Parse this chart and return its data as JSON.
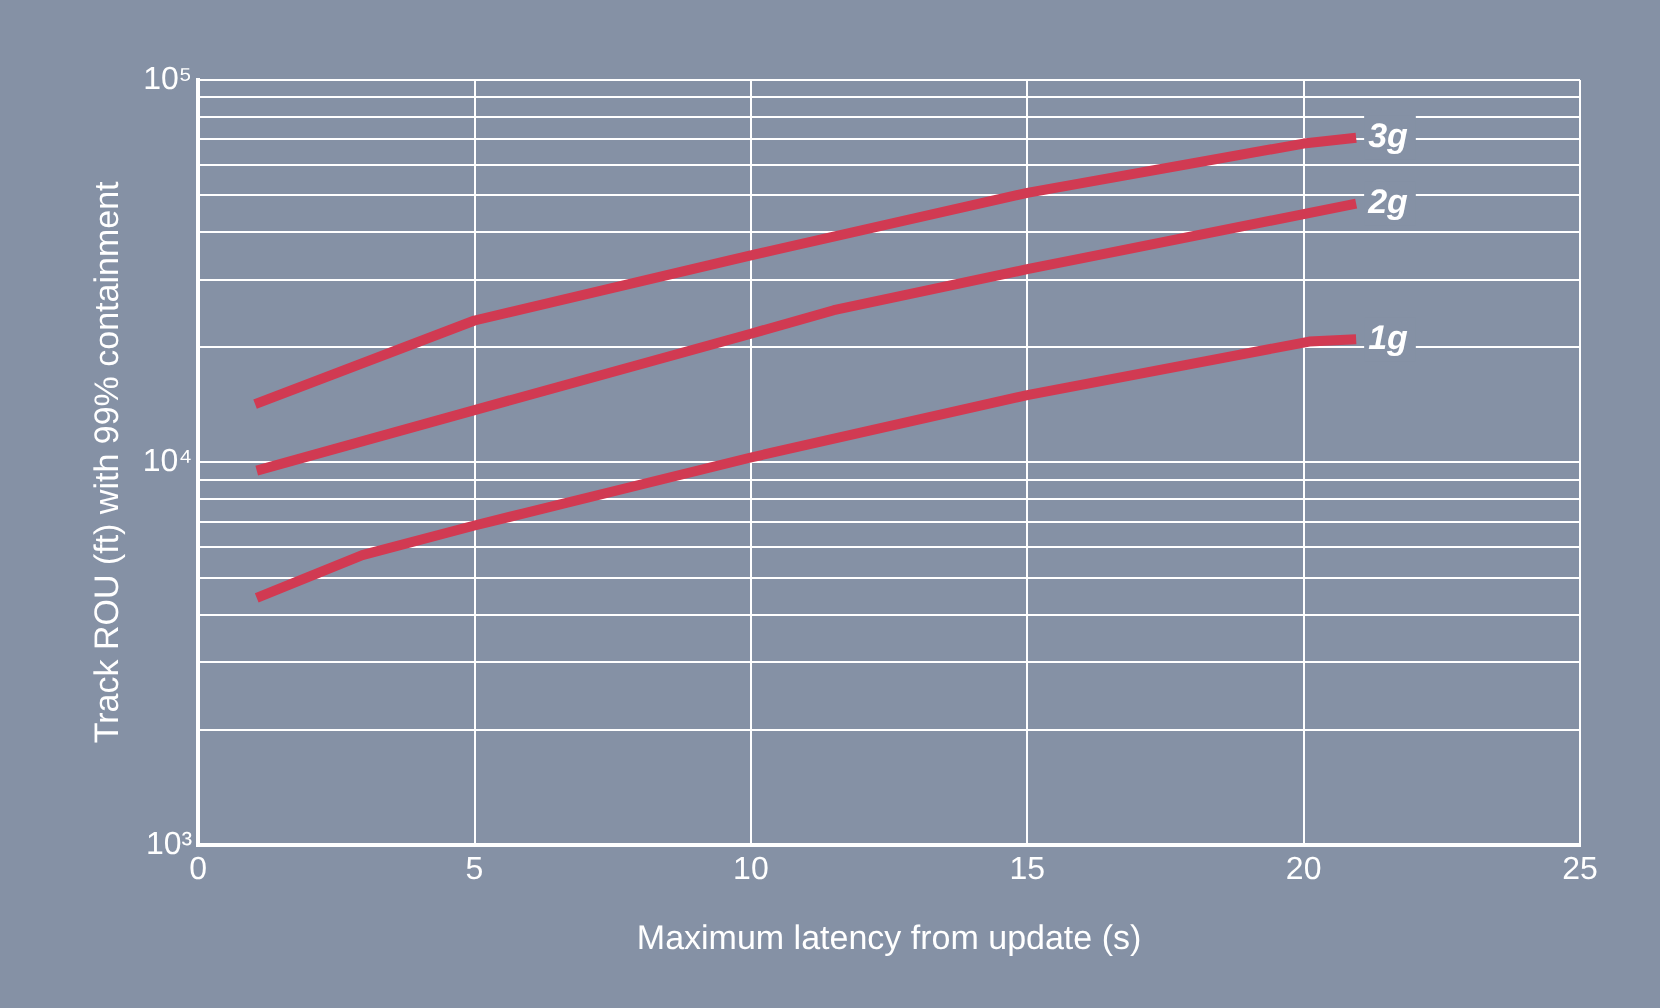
{
  "chart_data": {
    "type": "line",
    "xlabel": "Maximum latency from update (s)",
    "ylabel": "Track ROU (ft) with 99% containment",
    "log": "y",
    "grid": true,
    "legend": false,
    "marker": "none",
    "line_style": "solid",
    "xlim": [
      0,
      25
    ],
    "xticks": [
      0,
      5,
      10,
      15,
      20,
      25
    ],
    "ylim": [
      1000,
      100000
    ],
    "yticks": [
      {
        "value": 1000,
        "label": "10³"
      },
      {
        "value": 2000,
        "label": null
      },
      {
        "value": 3000,
        "label": null
      },
      {
        "value": 4000,
        "label": null
      },
      {
        "value": 5000,
        "label": null
      },
      {
        "value": 6000,
        "label": null
      },
      {
        "value": 7000,
        "label": null
      },
      {
        "value": 8000,
        "label": null
      },
      {
        "value": 9000,
        "label": null
      },
      {
        "value": 10000,
        "label": "10⁴"
      },
      {
        "value": 20000,
        "label": null
      },
      {
        "value": 30000,
        "label": null
      },
      {
        "value": 40000,
        "label": null
      },
      {
        "value": 50000,
        "label": null
      },
      {
        "value": 60000,
        "label": null
      },
      {
        "value": 70000,
        "label": null
      },
      {
        "value": 80000,
        "label": null
      },
      {
        "value": 90000,
        "label": null
      },
      {
        "value": 100000,
        "label": "10⁵"
      }
    ],
    "series": [
      {
        "name": "1g",
        "color": "#d13a52",
        "x": [
          1.06,
          2.97,
          5,
          10,
          15,
          20.1,
          20.95
        ],
        "values": [
          4420,
          5720,
          6840,
          10300,
          15000,
          20700,
          21000
        ]
      },
      {
        "name": "2g",
        "color": "#d13a52",
        "x": [
          1.06,
          5,
          10,
          11.5,
          15,
          20.95
        ],
        "values": [
          9520,
          13700,
          21700,
          25000,
          32000,
          47500
        ]
      },
      {
        "name": "3g",
        "color": "#d13a52",
        "x": [
          1.03,
          5,
          10,
          15,
          20,
          20.95
        ],
        "values": [
          14200,
          23500,
          34800,
          50700,
          68200,
          70600
        ]
      }
    ]
  }
}
